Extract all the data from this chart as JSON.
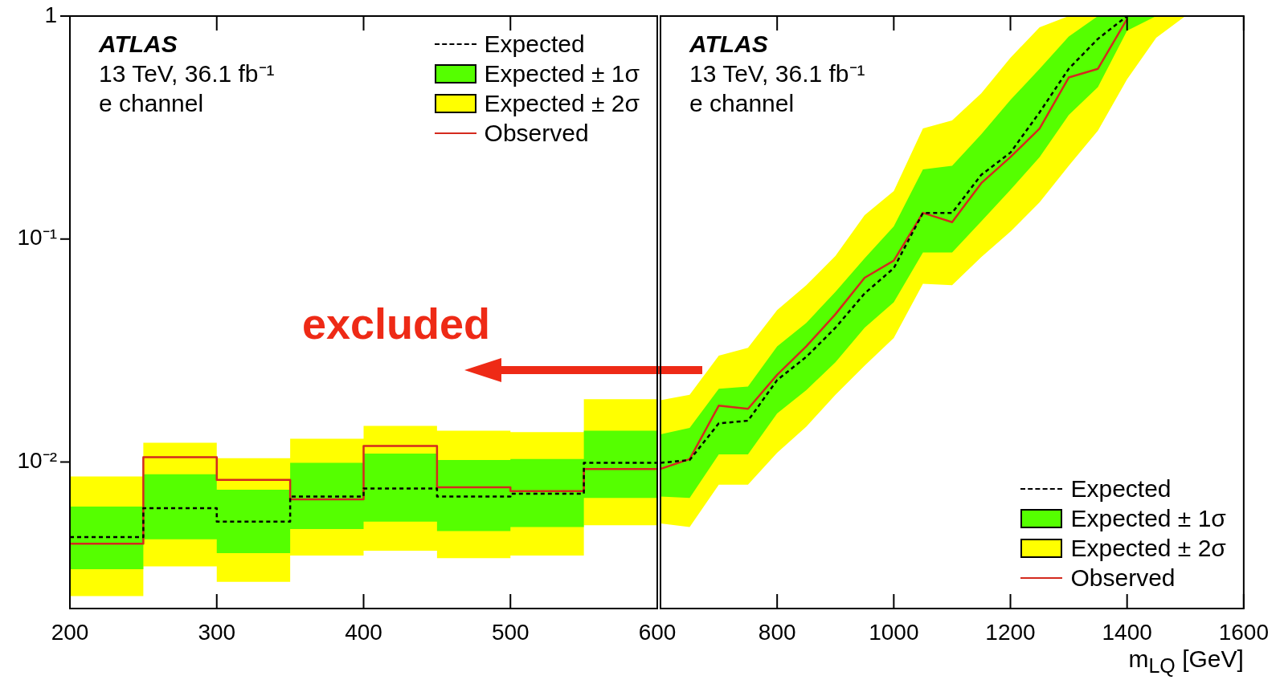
{
  "chart_data": [
    {
      "type": "step",
      "x": [
        200,
        250,
        300,
        350,
        400,
        450,
        500,
        550,
        600
      ],
      "xlim": [
        200,
        600
      ],
      "xticks": [
        200,
        300,
        400,
        500,
        600
      ],
      "ylim": [
        0.0022,
        1
      ],
      "yticks": [
        {
          "value": 0.01,
          "label": "10⁻²"
        },
        {
          "value": 0.1,
          "label": "10⁻¹"
        },
        {
          "value": 1,
          "label": "1"
        }
      ],
      "log": true,
      "grid": false,
      "legend": "top right",
      "annotations": [
        "ATLAS",
        "13 TeV, 36.1 fb⁻¹",
        "e channel",
        "excluded"
      ],
      "series": [
        {
          "name": "Expected",
          "color": "#000000",
          "line_style": "dashed",
          "values": [
            0.0046,
            0.0062,
            0.0054,
            0.007,
            0.0076,
            0.007,
            0.0072,
            0.0099,
            0.0099
          ]
        },
        {
          "name": "Expected ± 1σ",
          "color": "#55ff00",
          "values": [
            null,
            null,
            null,
            null,
            null,
            null,
            null,
            null,
            null
          ],
          "lower": [
            0.0033,
            0.0045,
            0.0039,
            0.005,
            0.0054,
            0.0049,
            0.0051,
            0.0069,
            0.0069
          ],
          "upper": [
            0.0063,
            0.0088,
            0.0075,
            0.0099,
            0.0109,
            0.0102,
            0.0103,
            0.0138,
            0.0138
          ]
        },
        {
          "name": "Expected ± 2σ",
          "color": "#ffff00",
          "values": [
            null,
            null,
            null,
            null,
            null,
            null,
            null,
            null,
            null
          ],
          "lower": [
            0.0025,
            0.0034,
            0.0029,
            0.0038,
            0.004,
            0.0037,
            0.0038,
            0.0052,
            0.0052
          ],
          "upper": [
            0.0086,
            0.0122,
            0.0104,
            0.0127,
            0.0145,
            0.0138,
            0.0136,
            0.0191,
            0.0191
          ]
        },
        {
          "name": "Observed",
          "color": "#d42a1e",
          "line_style": "solid",
          "values": [
            0.0043,
            0.0105,
            0.0083,
            0.0068,
            0.0118,
            0.0077,
            0.0074,
            0.0093,
            0.0093
          ]
        }
      ]
    },
    {
      "type": "line",
      "x": [
        600,
        650,
        700,
        750,
        800,
        850,
        900,
        950,
        1000,
        1050,
        1100,
        1150,
        1200,
        1250,
        1300,
        1350,
        1400,
        1450,
        1500
      ],
      "xlim": [
        600,
        1600
      ],
      "xticks": [
        {
          "value": 600,
          "label": null
        },
        800,
        1000,
        1200,
        1400,
        1600
      ],
      "xlabel": "m$_{LQ}$ [GeV]",
      "ylim": [
        0.0022,
        1
      ],
      "yticks": [
        {
          "value": 0.01,
          "label": null
        },
        {
          "value": 0.1,
          "label": null
        },
        {
          "value": 1,
          "label": null
        }
      ],
      "log": true,
      "grid": false,
      "legend": "bottom right",
      "tick_labels": "x",
      "annotations": [
        "ATLAS",
        "13 TeV, 36.1 fb⁻¹",
        "e channel"
      ],
      "series": [
        {
          "name": "Expected",
          "color": "#000000",
          "line_style": "dashed",
          "values": [
            0.0099,
            0.0102,
            0.0149,
            0.0153,
            0.0233,
            0.0296,
            0.04,
            0.057,
            0.074,
            0.131,
            0.131,
            0.194,
            0.244,
            0.37,
            0.58,
            0.79,
            1.0,
            null,
            null
          ]
        },
        {
          "name": "Expected ± 1σ",
          "color": "#55ff00",
          "values": [
            null,
            null,
            null,
            null,
            null,
            null,
            null,
            null,
            null,
            null,
            null,
            null,
            null,
            null,
            null,
            null,
            null,
            null,
            null
          ],
          "lower": [
            0.007,
            0.0069,
            0.0108,
            0.0108,
            0.0165,
            0.021,
            0.028,
            0.04,
            0.052,
            0.087,
            0.087,
            0.12,
            0.166,
            0.233,
            0.36,
            0.48,
            0.86,
            1.0,
            null
          ],
          "upper": [
            0.0133,
            0.0142,
            0.0213,
            0.0218,
            0.033,
            0.042,
            0.058,
            0.082,
            0.114,
            0.205,
            0.213,
            0.295,
            0.42,
            0.58,
            0.81,
            1.0,
            1.0,
            1.0,
            null
          ]
        },
        {
          "name": "Expected ± 2σ",
          "color": "#ffff00",
          "values": [
            null,
            null,
            null,
            null,
            null,
            null,
            null,
            null,
            null,
            null,
            null,
            null,
            null,
            null,
            null,
            null,
            null,
            null,
            null
          ],
          "lower": [
            0.0053,
            0.0051,
            0.0079,
            0.0079,
            0.011,
            0.0144,
            0.02,
            0.027,
            0.036,
            0.063,
            0.062,
            0.083,
            0.108,
            0.146,
            0.213,
            0.306,
            0.52,
            0.8,
            1.0
          ],
          "upper": [
            0.0189,
            0.02,
            0.03,
            0.0325,
            0.048,
            0.062,
            0.084,
            0.128,
            0.164,
            0.313,
            0.34,
            0.45,
            0.65,
            0.89,
            1.0,
            1.0,
            1.0,
            1.0,
            1.0
          ]
        },
        {
          "name": "Observed",
          "color": "#d42a1e",
          "line_style": "solid",
          "values": [
            0.0093,
            0.0103,
            0.0179,
            0.0173,
            0.0246,
            0.033,
            0.046,
            0.067,
            0.08,
            0.131,
            0.119,
            0.178,
            0.233,
            0.313,
            0.53,
            0.58,
            0.97,
            null,
            null
          ]
        }
      ]
    }
  ]
}
